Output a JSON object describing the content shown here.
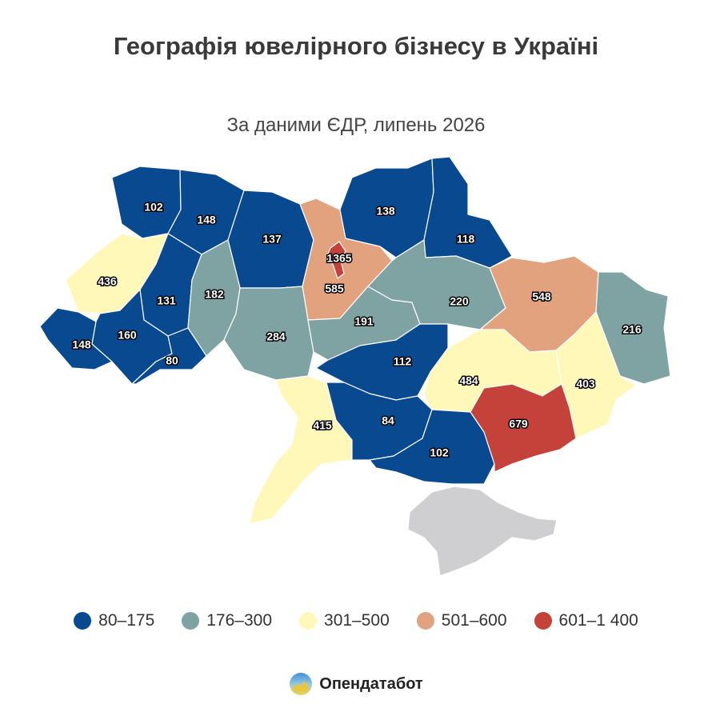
{
  "title": "Географія ювелірного бізнесу в Україні",
  "subtitle": "За даними ЄДР, липень 2026",
  "legend": [
    {
      "label": "80–175",
      "color": "#08498f"
    },
    {
      "label": "176–300",
      "color": "#7fa2a3"
    },
    {
      "label": "301–500",
      "color": "#fff8b8"
    },
    {
      "label": "501–600",
      "color": "#e3a27e"
    },
    {
      "label": "601–1 400",
      "color": "#c5423b"
    }
  ],
  "no_data_color": "#cfcfd2",
  "brand": "Опендатабот",
  "map_data": {
    "regions": [
      {
        "id": "volynska",
        "value": 102
      },
      {
        "id": "rivnenska",
        "value": 148
      },
      {
        "id": "zhytomyrska",
        "value": 137
      },
      {
        "id": "kyivska",
        "value": 585
      },
      {
        "id": "kyiv-city",
        "value": 1365
      },
      {
        "id": "chernihivska",
        "value": 138
      },
      {
        "id": "sumska",
        "value": 118
      },
      {
        "id": "lvivska",
        "value": 436
      },
      {
        "id": "ternopilska",
        "value": 131
      },
      {
        "id": "khmelnytska",
        "value": 182
      },
      {
        "id": "zakarpatska",
        "value": 148
      },
      {
        "id": "ivano-frankivska",
        "value": 160
      },
      {
        "id": "chernivetska",
        "value": 80
      },
      {
        "id": "vinnytska",
        "value": 284
      },
      {
        "id": "cherkaska",
        "value": 191
      },
      {
        "id": "poltavska",
        "value": 220
      },
      {
        "id": "kharkivska",
        "value": 548
      },
      {
        "id": "luhanska",
        "value": 216
      },
      {
        "id": "kirovohradska",
        "value": 112
      },
      {
        "id": "dnipropetrovska",
        "value": 484
      },
      {
        "id": "donetska",
        "value": 403
      },
      {
        "id": "odeska",
        "value": 415
      },
      {
        "id": "mykolaivska",
        "value": 84
      },
      {
        "id": "khersonska",
        "value": 102
      },
      {
        "id": "zaporizka",
        "value": 679
      },
      {
        "id": "crimea",
        "value": null
      }
    ]
  }
}
